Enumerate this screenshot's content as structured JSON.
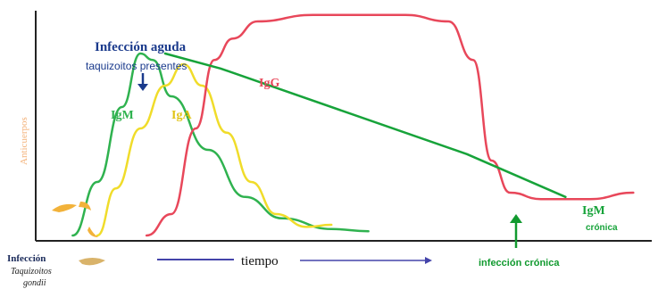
{
  "chart_data": {
    "type": "line",
    "title": "",
    "xlabel": "tiempo",
    "ylabel": "Anticuerpos",
    "xlim": [
      0,
      100
    ],
    "ylim": [
      0,
      100
    ],
    "grid": false,
    "colors": {
      "IgG": "#e8475a",
      "IgM": "#2fb24f",
      "IgA": "#f0dc2a",
      "IgM_cronica": "#17a33a",
      "axis": "#222222",
      "ylabel": "#f3b27a",
      "arrow_blue": "#1a3a8c",
      "x_arrow": "#4444aa",
      "annotation_navy": "#1a3a8c",
      "annotation_green": "#119a2f"
    },
    "series": [
      {
        "name": "IgM",
        "points": [
          [
            6,
            0
          ],
          [
            10,
            25
          ],
          [
            14,
            60
          ],
          [
            17,
            85
          ],
          [
            19,
            82
          ],
          [
            22,
            65
          ],
          [
            28,
            40
          ],
          [
            34,
            18
          ],
          [
            40,
            8
          ],
          [
            48,
            3
          ],
          [
            54,
            2
          ]
        ]
      },
      {
        "name": "IgA",
        "points": [
          [
            10,
            0
          ],
          [
            13,
            22
          ],
          [
            17,
            50
          ],
          [
            21,
            70
          ],
          [
            24,
            80
          ],
          [
            27,
            70
          ],
          [
            31,
            48
          ],
          [
            35,
            25
          ],
          [
            39,
            10
          ],
          [
            44,
            4
          ],
          [
            48,
            5
          ]
        ]
      },
      {
        "name": "IgG",
        "points": [
          [
            18,
            0
          ],
          [
            22,
            10
          ],
          [
            26,
            50
          ],
          [
            29,
            82
          ],
          [
            32,
            92
          ],
          [
            36,
            100
          ],
          [
            45,
            103
          ],
          [
            60,
            103
          ],
          [
            67,
            100
          ],
          [
            71,
            82
          ],
          [
            74,
            35
          ],
          [
            77,
            20
          ],
          [
            82,
            17
          ],
          [
            90,
            17
          ],
          [
            97,
            20
          ]
        ]
      },
      {
        "name": "IgM",
        "points": [
          [
            21,
            85
          ],
          [
            30,
            78
          ],
          [
            50,
            58
          ],
          [
            70,
            38
          ],
          [
            86,
            18
          ]
        ]
      }
    ],
    "annotations": {
      "infeccion_aguda": "Infección aguda",
      "taquizoitos": "taquizoitos presentes",
      "igm_peak": "IgM",
      "iga_peak": "IgA",
      "igg_label": "IgG",
      "igm_cronica": "IgM",
      "cronica": "crónica",
      "infeccion_cronica": "infección crónica",
      "infeccion": "Infección",
      "taquizoitos_small": "Taquizoitos",
      "gondii": "gondii"
    }
  }
}
